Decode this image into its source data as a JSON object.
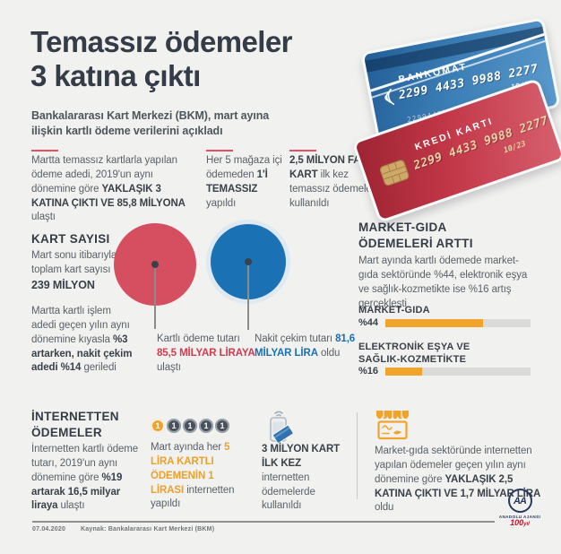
{
  "header": {
    "title_line1": "Temassız ödemeler",
    "title_line2": "3 katına çıktı",
    "subtitle": "Bankalararası Kart Merkezi (BKM), mart ayına ilişkin kartlı ödeme verilerini açıkladı"
  },
  "cards": {
    "blue": {
      "brand": "BANKOMAT",
      "number": "2299 4433 9988 2277",
      "expiry": "10/23",
      "id_number": "2299443399"
    },
    "red": {
      "brand": "KREDİ KARTI",
      "number": "2299 4433 9988 2277",
      "expiry": "10/23"
    }
  },
  "top_facts": [
    {
      "pre": "Martta temassız kartlarla yapılan ödeme adedi, 2019'un aynı dönemine göre ",
      "bold": "YAKLAŞIK 3 KATINA ÇIKTI VE 85,8 MİLYONA",
      "post": " ulaştı"
    },
    {
      "pre": "Her 5 mağaza içi ödemeden ",
      "bold": "1'İ TEMASSIZ",
      "post": " yapıldı"
    },
    {
      "pre": "",
      "bold": "2,5 MİLYON FARKLI KART",
      "post": " ilk kez temassız ödemelerde kullanıldı"
    }
  ],
  "card_count": {
    "heading": "KART SAYISI",
    "intro": "Mart sonu itibarıyla toplam kart sayısı",
    "total": "239 MİLYON",
    "detail_pre": "Martta kartlı işlem adedi geçen yılın aynı dönemine kıyasla ",
    "detail_bold": "%3 artarken, nakit çekim adedi %14",
    "detail_post": " geriledi",
    "card_payment": {
      "pre": "Kartlı ödeme tutarı ",
      "bold": "85,5 MİLYAR LİRAYA",
      "post": " ulaştı",
      "value_billion_try": 85.5
    },
    "cash_withdraw": {
      "pre": "Nakit çekim tutarı ",
      "bold": "81,6 MİLYAR LİRA",
      "post": " oldu",
      "value_billion_try": 81.6
    }
  },
  "market_growth": {
    "heading_line1": "MARKET-GIDA",
    "heading_line2": "ÖDEMELERİ ARTTI",
    "body": "Mart ayında kartlı ödemede market-gıda sektöründe %44, elektronik eşya ve sağlık-kozmetikte ise %16 artış gerçekleşti",
    "bars": [
      {
        "label_line1": "MARKET-GIDA",
        "label_line2": "",
        "value_label": "%44",
        "value": 44,
        "fill_pct": 67
      },
      {
        "label_line1": "ELEKTRONİK EŞYA VE",
        "label_line2": "SAĞLIK-KOZMETİKTE",
        "value_label": "%16",
        "value": 16,
        "fill_pct": 25
      }
    ]
  },
  "internet_payments": {
    "heading_line1": "İNTERNETTEN",
    "heading_line2": "ÖDEMELER",
    "body_pre": "İnternetten kartlı ödeme tutarı, 2019'un aynı dönemine göre ",
    "body_bold": "%19 artarak 16,5 milyar liraya",
    "body_post": " ulaştı"
  },
  "internet_share": {
    "coins": [
      "1",
      "1",
      "1",
      "1",
      "1"
    ],
    "pre": "Mart ayında her ",
    "bold": "5 LİRA KARTLI ÖDEMENİN 1 LİRASI",
    "post": " internetten yapıldı"
  },
  "first_time_online": {
    "bold": "3 MİLYON KART İLK KEZ",
    "post": " internetten ödemelerde kullanıldı"
  },
  "online_market": {
    "pre": "Market-gıda sektöründe internetten yapılan ödemeler geçen yılın aynı dönemine göre ",
    "bold": "YAKLAŞIK 2,5 KATINA ÇIKTI VE 1,7 MİLYAR LİRA",
    "post": " oldu"
  },
  "footer": {
    "date": "07.04.2020",
    "source": "Kaynak: Bankalararası Kart Merkezi (BKM)"
  },
  "logo": {
    "monogram": "AA",
    "agency": "ANADOLU AJANSI",
    "anniversary": "100",
    "anniversary_suffix": "yıl"
  },
  "colors": {
    "background": "#f1f1ef",
    "ink": "#39424c",
    "red": "#d5455a",
    "blue": "#1b71b3",
    "orange": "#f0a42c",
    "bar_track": "#dadad8"
  },
  "chart_data": {
    "type": "bar",
    "title": "MARKET-GIDA ÖDEMELERİ ARTTI",
    "categories": [
      "MARKET-GIDA",
      "ELEKTRONİK EŞYA VE SAĞLIK-KOZMETİKTE"
    ],
    "values": [
      44,
      16
    ],
    "unit": "%",
    "bubbles": {
      "categories": [
        "Kartlı ödeme tutarı (milyar lira)",
        "Nakit çekim tutarı (milyar lira)"
      ],
      "values": [
        85.5,
        81.6
      ]
    }
  }
}
